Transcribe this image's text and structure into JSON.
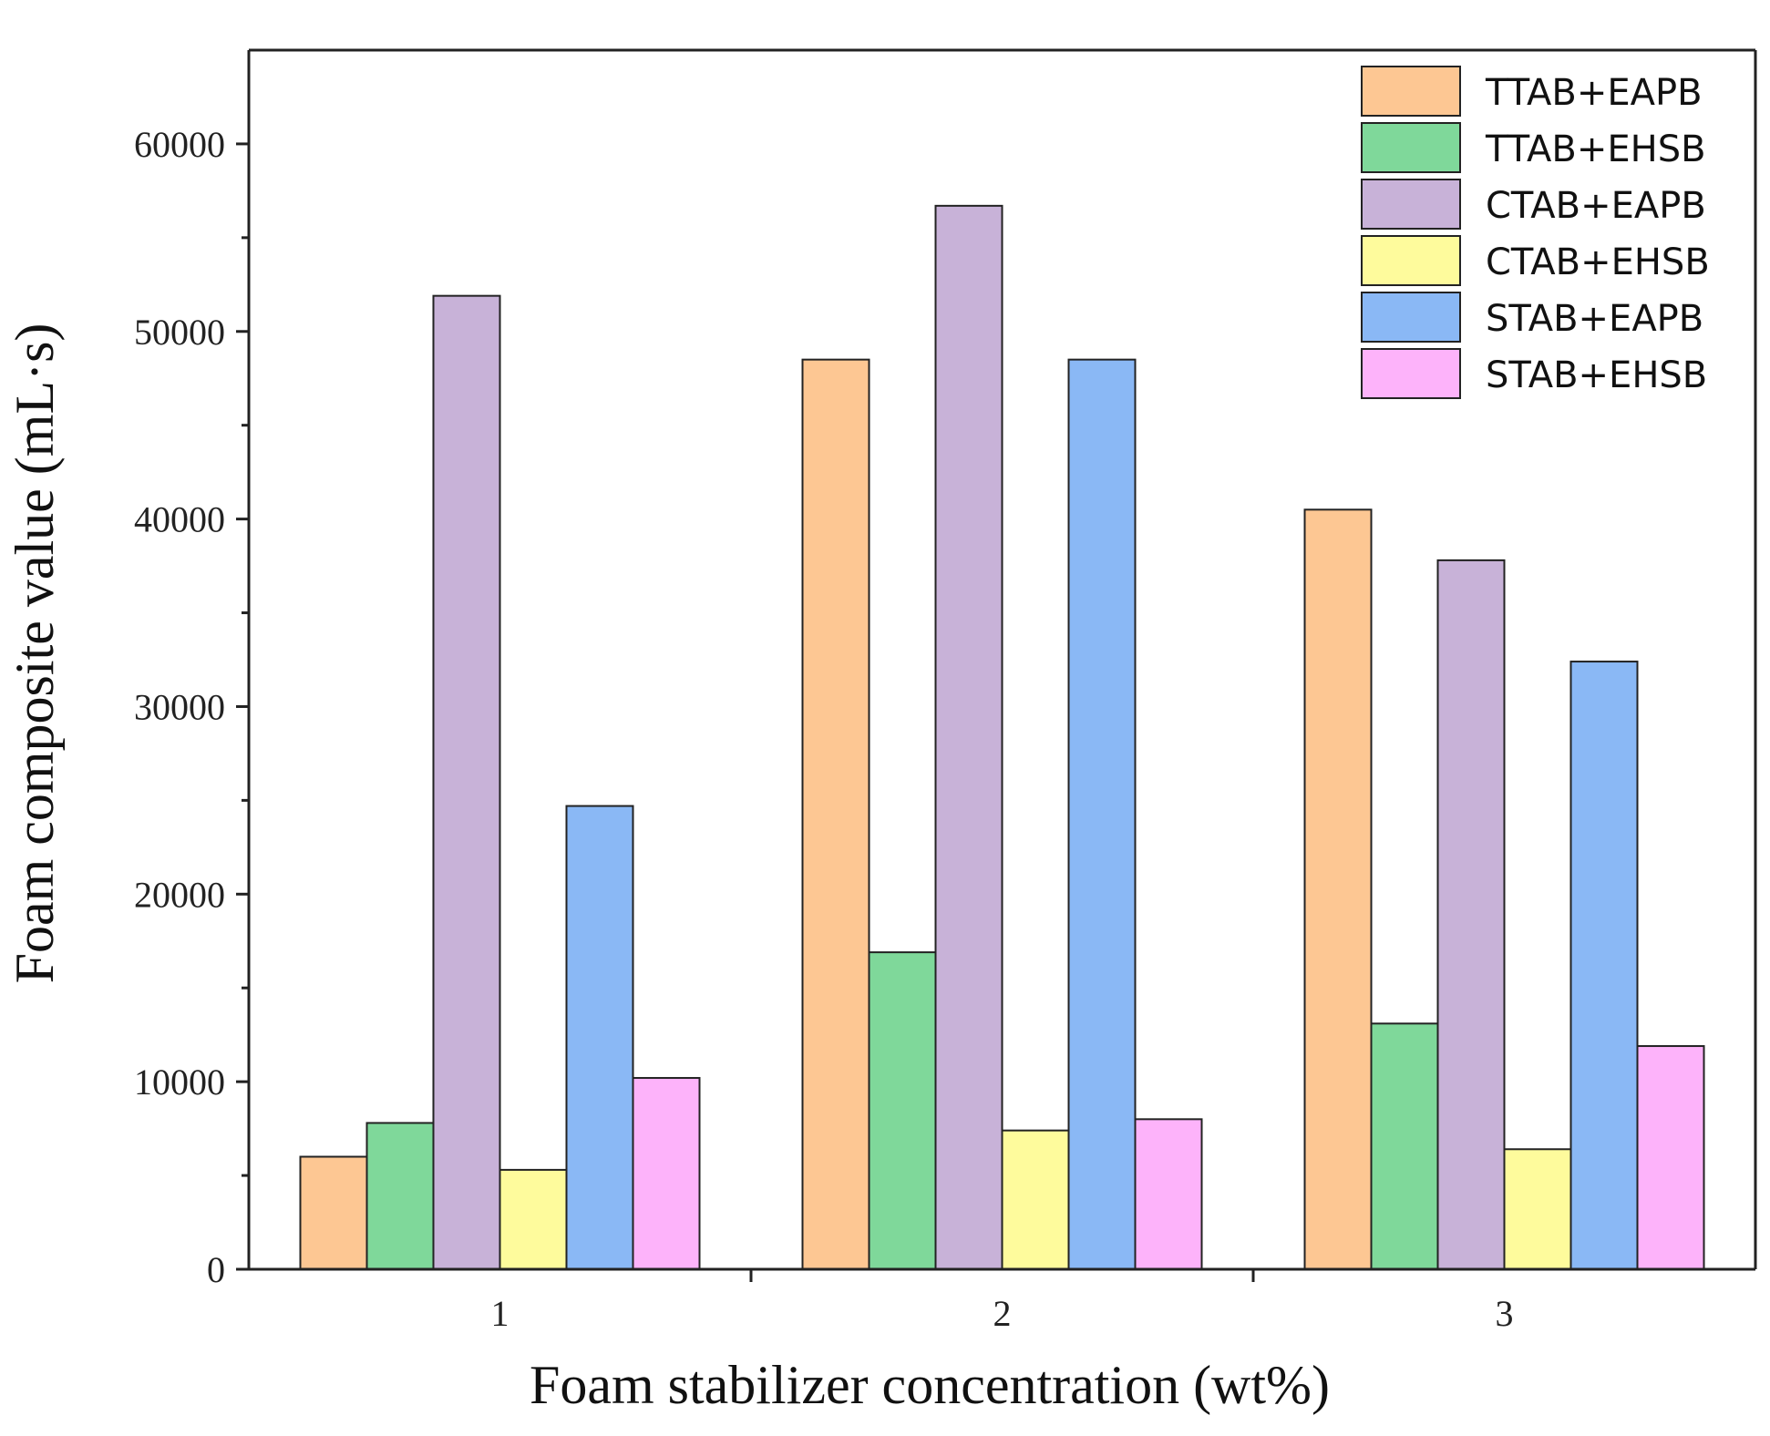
{
  "chart_data": {
    "type": "bar",
    "title": "",
    "xlabel": "Foam stabilizer concentration (wt%)",
    "ylabel": "Foam composite value (mL·s)",
    "categories": [
      "1",
      "2",
      "3"
    ],
    "ylim": [
      0,
      65000
    ],
    "yticks": [
      0,
      10000,
      20000,
      30000,
      40000,
      50000,
      60000
    ],
    "ytick_labels": [
      "0",
      "10000",
      "20000",
      "30000",
      "40000",
      "50000",
      "60000"
    ],
    "grid": false,
    "legend_position": "top-right",
    "series": [
      {
        "name": "TTAB+EAPB",
        "color": "#fdc793",
        "values": [
          6000,
          48500,
          40500
        ]
      },
      {
        "name": "TTAB+EHSB",
        "color": "#7fd89a",
        "values": [
          7800,
          16900,
          13100
        ]
      },
      {
        "name": "CTAB+EAPB",
        "color": "#c8b2d8",
        "values": [
          51900,
          56700,
          37800
        ]
      },
      {
        "name": "CTAB+EHSB",
        "color": "#fefb9c",
        "values": [
          5300,
          7400,
          6400
        ]
      },
      {
        "name": "STAB+EAPB",
        "color": "#8ab8f5",
        "values": [
          24700,
          48500,
          32400
        ]
      },
      {
        "name": "STAB+EHSB",
        "color": "#fdb3fa",
        "values": [
          10200,
          8000,
          11900
        ]
      }
    ]
  }
}
